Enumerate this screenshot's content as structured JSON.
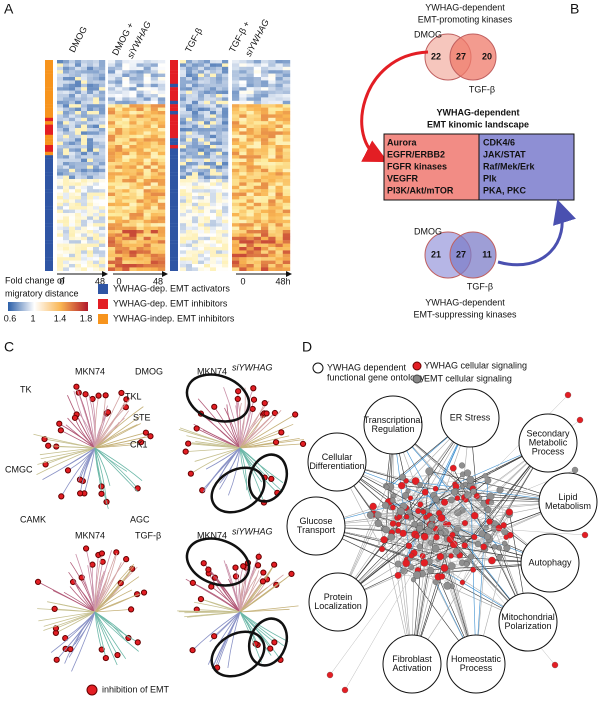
{
  "panel_a": {
    "letter": "A",
    "columns": [
      "DMOG",
      "DMOG +",
      "siYWHAG",
      "TGF-β",
      "TGF-β +",
      "siYWHAG"
    ],
    "time_ticks": [
      "0",
      "48",
      "0",
      "48",
      "0",
      "48h"
    ],
    "colorbar_title": [
      "Fold change of",
      "migratory distance"
    ],
    "colorbar_ticks": [
      "0.6",
      "1",
      "1.4",
      "1.8"
    ],
    "legend": [
      {
        "label": "YWHAG-dep. EMT activators",
        "color": "#2f55a4"
      },
      {
        "label": "YWHAG-dep. EMT inhibitors",
        "color": "#e31e24"
      },
      {
        "label": "YWHAG-indep. EMT inhibitors",
        "color": "#f7941d"
      }
    ]
  },
  "panel_b": {
    "letter": "B",
    "top_title": [
      "YWHAG-dependent",
      "EMT-promoting kinases"
    ],
    "top_venn": {
      "left": "DMOG",
      "right": "TGF-β",
      "counts": [
        "22",
        "27",
        "20"
      ]
    },
    "box_title": [
      "YWHAG-dependent",
      "EMT kinomic landscape"
    ],
    "promoting_list": [
      "Aurora",
      "EGFR/ERBB2",
      "FGFR kinases",
      "VEGFR",
      "PI3K/Akt/mTOR"
    ],
    "suppressing_list": [
      "CDK4/6",
      "JAK/STAT",
      "Raf/Mek/Erk",
      "Plk",
      "PKA,  PKC"
    ],
    "bottom_venn": {
      "left": "DMOG",
      "right": "TGF-β",
      "counts": [
        "21",
        "27",
        "11"
      ]
    },
    "bottom_title": [
      "YWHAG-dependent",
      "EMT-suppressing kinases"
    ]
  },
  "panel_c": {
    "letter": "C",
    "top": {
      "condition": "DMOG",
      "left": "MKN74",
      "right": "MKN74",
      "right_sup": "siYWHAG"
    },
    "bottom": {
      "condition": "TGF-β",
      "left": "MKN74",
      "right": "MKN74",
      "right_sup": "siYWHAG"
    },
    "families": [
      "TK",
      "TKL",
      "STE",
      "CK1",
      "CMGC",
      "CAMK",
      "AGC"
    ],
    "legend": "inhibition of EMT"
  },
  "panel_d": {
    "letter": "D",
    "legend": {
      "ontology": [
        "YWHAG dependent",
        "functional gene ontology"
      ],
      "ywhag": "YWHAG cellular signaling",
      "emt": "EMT cellular signaling"
    },
    "nodes": [
      {
        "label": [
          "Transcriptional",
          "Regulation"
        ]
      },
      {
        "label": [
          "ER Stress"
        ]
      },
      {
        "label": [
          "Secondary",
          "Metabolic",
          "Process"
        ]
      },
      {
        "label": [
          "Lipid",
          "Metabolism"
        ]
      },
      {
        "label": [
          "Autophagy"
        ]
      },
      {
        "label": [
          "Mitochondrial",
          "Polarization"
        ]
      },
      {
        "label": [
          "Homeostatic",
          "Process"
        ]
      },
      {
        "label": [
          "Fibroblast",
          "Activation"
        ]
      },
      {
        "label": [
          "Protein",
          "Localization"
        ]
      },
      {
        "label": [
          "Glucose",
          "Transport"
        ]
      },
      {
        "label": [
          "Cellular",
          "Differentiation"
        ]
      }
    ]
  }
}
